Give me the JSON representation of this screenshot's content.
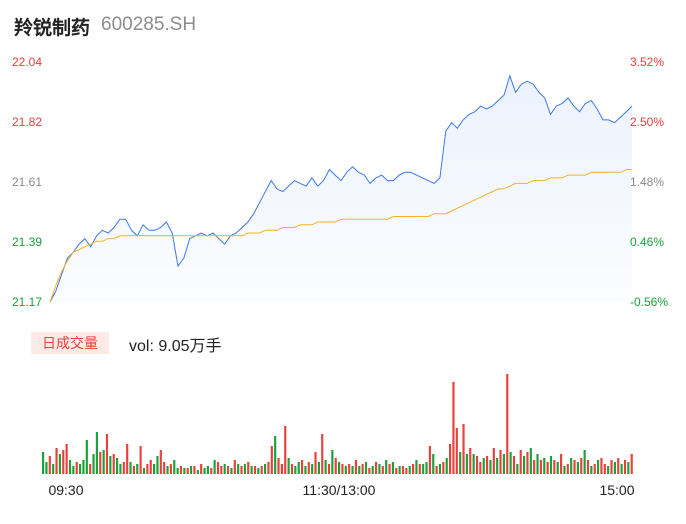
{
  "header": {
    "name": "羚锐制药",
    "code": "600285.SH"
  },
  "volume_panel": {
    "badge": "日成交量",
    "label": "vol: 9.05万手"
  },
  "colors": {
    "up": "#e8413b",
    "down": "#1aa13a",
    "price_line": "#3b78e7",
    "avg_line": "#f5b324",
    "neutral": "#8c8c8c"
  },
  "chart_data": [
    {
      "type": "line",
      "title": "",
      "x_ticks": [
        "09:30",
        "11:30/13:00",
        "15:00"
      ],
      "y_left_ticks": [
        "22.04",
        "21.82",
        "21.61",
        "21.39",
        "21.17"
      ],
      "y_right_ticks": [
        "3.52%",
        "2.50%",
        "1.48%",
        "0.46%",
        "-0.56%"
      ],
      "ylim": [
        21.17,
        22.04
      ],
      "series": [
        {
          "values": [
            21.17,
            21.21,
            21.27,
            21.33,
            21.35,
            21.38,
            21.4,
            21.37,
            21.41,
            21.43,
            21.42,
            21.44,
            21.47,
            21.47,
            21.43,
            21.41,
            21.45,
            21.43,
            21.43,
            21.44,
            21.46,
            21.42,
            21.3,
            21.33,
            21.4,
            21.41,
            21.42,
            21.41,
            21.42,
            21.4,
            21.38,
            21.41,
            21.42,
            21.44,
            21.46,
            21.49,
            21.53,
            21.57,
            21.61,
            21.58,
            21.57,
            21.59,
            21.61,
            21.6,
            21.59,
            21.62,
            21.59,
            21.61,
            21.65,
            21.63,
            21.61,
            21.64,
            21.66,
            21.64,
            21.63,
            21.6,
            21.62,
            21.63,
            21.61,
            21.61,
            21.63,
            21.64,
            21.64,
            21.63,
            21.62,
            21.61,
            21.6,
            21.62,
            21.79,
            21.82,
            21.8,
            21.83,
            21.85,
            21.86,
            21.88,
            21.87,
            21.88,
            21.9,
            21.92,
            21.99,
            21.93,
            21.96,
            21.97,
            21.96,
            21.93,
            21.91,
            21.85,
            21.88,
            21.89,
            21.91,
            21.88,
            21.86,
            21.89,
            21.9,
            21.87,
            21.83,
            21.83,
            21.82,
            21.84,
            21.86,
            21.88
          ]
        },
        {
          "values": [
            21.17,
            21.23,
            21.28,
            21.32,
            21.35,
            21.36,
            21.37,
            21.38,
            21.39,
            21.39,
            21.4,
            21.4,
            21.41,
            21.41,
            21.41,
            21.41,
            21.41,
            21.41,
            21.41,
            21.41,
            21.41,
            21.41,
            21.41,
            21.41,
            21.41,
            21.41,
            21.41,
            21.41,
            21.41,
            21.41,
            21.41,
            21.41,
            21.41,
            21.41,
            21.42,
            21.42,
            21.42,
            21.43,
            21.43,
            21.43,
            21.44,
            21.44,
            21.44,
            21.45,
            21.45,
            21.45,
            21.46,
            21.46,
            21.46,
            21.46,
            21.47,
            21.47,
            21.47,
            21.47,
            21.47,
            21.47,
            21.47,
            21.47,
            21.47,
            21.48,
            21.48,
            21.48,
            21.48,
            21.48,
            21.48,
            21.48,
            21.49,
            21.49,
            21.49,
            21.5,
            21.51,
            21.52,
            21.53,
            21.54,
            21.55,
            21.56,
            21.57,
            21.58,
            21.58,
            21.59,
            21.6,
            21.6,
            21.6,
            21.61,
            21.61,
            21.61,
            21.62,
            21.62,
            21.62,
            21.63,
            21.63,
            21.63,
            21.63,
            21.64,
            21.64,
            21.64,
            21.64,
            21.64,
            21.64,
            21.65,
            21.65
          ]
        }
      ]
    },
    {
      "type": "bar",
      "title": "",
      "values": [
        22,
        12,
        18,
        10,
        26,
        20,
        24,
        30,
        14,
        8,
        12,
        10,
        14,
        34,
        10,
        20,
        42,
        22,
        24,
        40,
        18,
        20,
        16,
        10,
        12,
        30,
        12,
        8,
        10,
        28,
        6,
        10,
        14,
        10,
        18,
        24,
        12,
        8,
        10,
        14,
        6,
        8,
        6,
        6,
        8,
        8,
        4,
        10,
        6,
        8,
        6,
        14,
        12,
        8,
        10,
        8,
        6,
        14,
        10,
        8,
        10,
        12,
        8,
        8,
        6,
        8,
        10,
        12,
        28,
        38,
        16,
        10,
        48,
        16,
        10,
        8,
        12,
        14,
        8,
        12,
        10,
        22,
        12,
        40,
        14,
        10,
        24,
        16,
        12,
        10,
        8,
        10,
        8,
        14,
        8,
        10,
        12,
        6,
        8,
        12,
        10,
        8,
        14,
        10,
        12,
        6,
        8,
        8,
        6,
        8,
        10,
        14,
        10,
        10,
        12,
        28,
        20,
        8,
        10,
        12,
        16,
        30,
        92,
        46,
        22,
        50,
        20,
        26,
        20,
        18,
        12,
        16,
        18,
        14,
        26,
        16,
        24,
        20,
        100,
        22,
        18,
        10,
        24,
        18,
        22,
        26,
        14,
        20,
        14,
        16,
        12,
        18,
        14,
        12,
        20,
        8,
        10,
        16,
        14,
        12,
        16,
        24,
        14,
        8,
        10,
        14,
        16,
        10,
        8,
        14,
        12,
        16,
        10,
        14,
        12,
        20
      ],
      "colors": [
        "down",
        "down",
        "up",
        "down",
        "up",
        "down",
        "up",
        "up",
        "down",
        "down",
        "up",
        "down",
        "down",
        "down",
        "up",
        "down",
        "down",
        "up",
        "down",
        "up",
        "down",
        "up",
        "down",
        "down",
        "up",
        "up",
        "down",
        "up",
        "down",
        "up",
        "down",
        "up",
        "up",
        "down",
        "down",
        "up",
        "up",
        "down",
        "up",
        "down",
        "down",
        "up",
        "down",
        "up",
        "down",
        "up",
        "down",
        "up",
        "down",
        "down",
        "up",
        "down",
        "up",
        "up",
        "down",
        "up",
        "down",
        "up",
        "down",
        "up",
        "down",
        "up",
        "down",
        "up",
        "down",
        "up",
        "down",
        "up",
        "up",
        "down",
        "up",
        "up",
        "up",
        "down",
        "up",
        "down",
        "down",
        "up",
        "down",
        "up",
        "down",
        "up",
        "down",
        "up",
        "down",
        "up",
        "down",
        "up",
        "down",
        "up",
        "down",
        "up",
        "down",
        "up",
        "down",
        "up",
        "down",
        "up",
        "down",
        "up",
        "down",
        "up",
        "down",
        "up",
        "down",
        "up",
        "down",
        "up",
        "up",
        "down",
        "up",
        "down",
        "up",
        "down",
        "down",
        "up",
        "down",
        "up",
        "down",
        "up",
        "down",
        "up",
        "up",
        "up",
        "down",
        "up",
        "down",
        "up",
        "down",
        "up",
        "up",
        "down",
        "up",
        "down",
        "up",
        "down",
        "up",
        "down",
        "up",
        "down",
        "up",
        "down",
        "up",
        "down",
        "up",
        "down",
        "up",
        "down",
        "up",
        "down",
        "up",
        "down",
        "up",
        "down",
        "up",
        "down",
        "up",
        "down",
        "up",
        "down",
        "up",
        "down",
        "up",
        "down",
        "up",
        "down",
        "up",
        "up",
        "down",
        "up",
        "down",
        "up",
        "down",
        "up",
        "down",
        "up",
        "down",
        "up",
        "down",
        "up"
      ]
    }
  ]
}
